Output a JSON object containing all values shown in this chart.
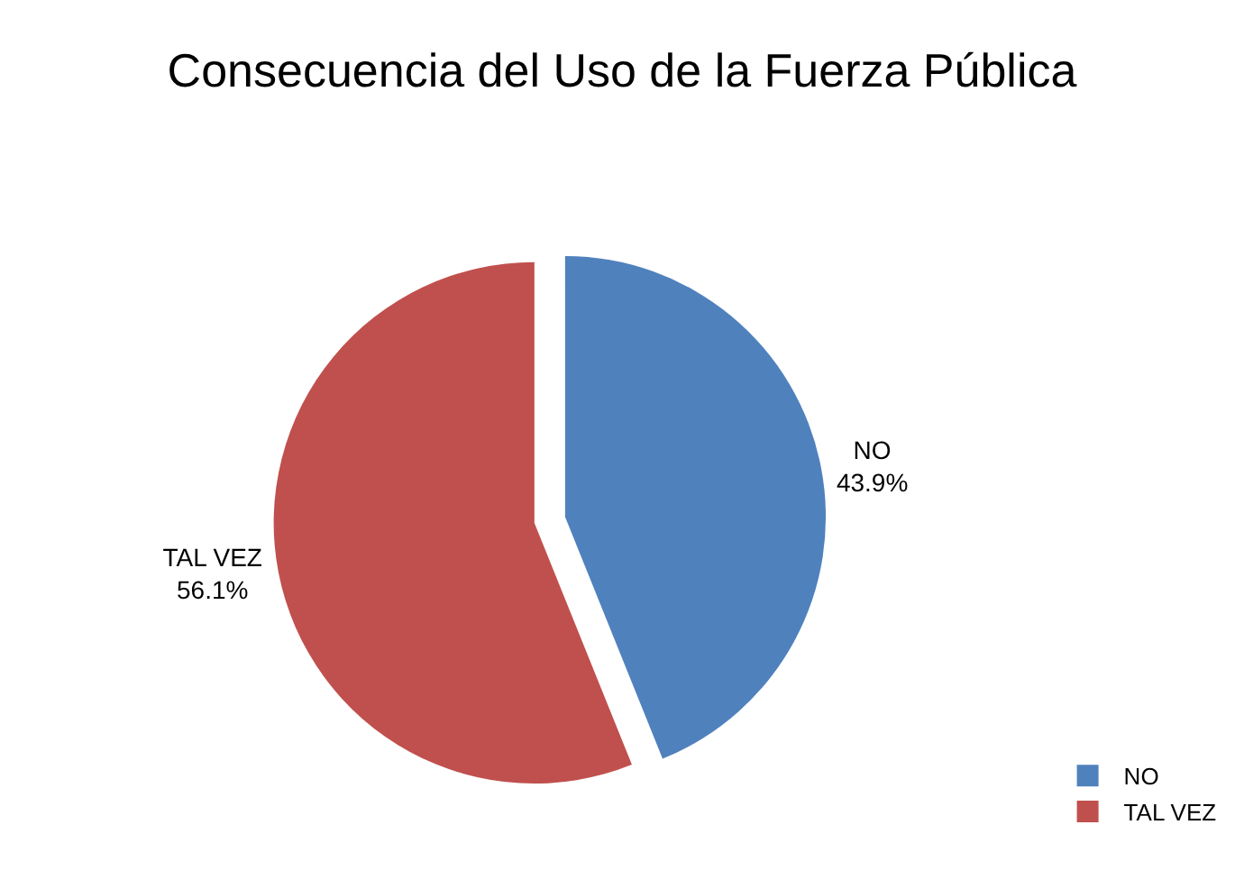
{
  "chart_data": {
    "type": "pie",
    "title": "Consecuencia del Uso de la Fuerza Pública",
    "categories": [
      "NO",
      "TAL VEZ"
    ],
    "values": [
      43.9,
      56.1
    ],
    "value_labels": [
      "43.9%",
      "56.1%"
    ],
    "colors": [
      "#4f81bd",
      "#c0504d"
    ],
    "legend": "bottom right"
  }
}
